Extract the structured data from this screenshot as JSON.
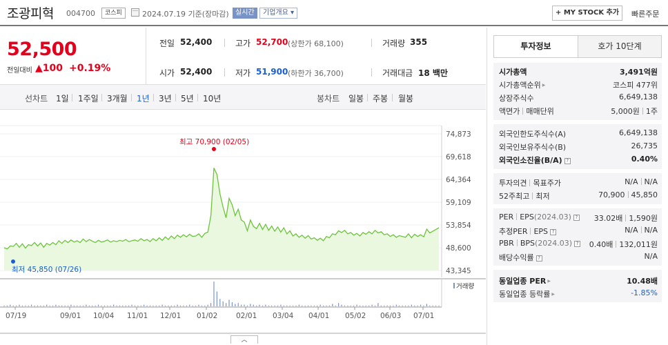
{
  "header": {
    "name": "조광피혁",
    "code": "004700",
    "market": "코스피",
    "date": "2024.07.19 기준(장마감)",
    "realtime": "실시간",
    "company": "기업개요",
    "mystock": "MY STOCK 추가",
    "mystock_plus": "+",
    "quick_order": "빠른주문"
  },
  "price": {
    "current": "52,500",
    "change_label": "전일대비",
    "change": "100",
    "change_pct": "+0.19%",
    "prev_label": "전일",
    "prev": "52,400",
    "open_label": "시가",
    "open": "52,400",
    "high_label": "고가",
    "high": "52,700",
    "high_sub": "(상한가 68,100)",
    "low_label": "저가",
    "low": "51,900",
    "low_sub": "(하한가 36,700)",
    "volume_label": "거래량",
    "volume": "355",
    "amount_label": "거래대금",
    "amount": "18 백만"
  },
  "tabs": {
    "line_label": "선차트",
    "periods": [
      "1일",
      "1주일",
      "3개월",
      "1년",
      "3년",
      "5년",
      "10년"
    ],
    "active": "1년",
    "candle_label": "봉차트",
    "candles": [
      "일봉",
      "주봉",
      "월봉"
    ]
  },
  "chart_data": {
    "type": "area",
    "y_ticks": [
      "74,873",
      "69,618",
      "64,364",
      "59,109",
      "53,854",
      "48,600",
      "43,345"
    ],
    "ylim": [
      43345,
      74873
    ],
    "x_ticks": [
      "07/19",
      "09/01",
      "10/04",
      "11/01",
      "12/01",
      "01/02",
      "02/01",
      "03/04",
      "04/01",
      "05/02",
      "06/03",
      "07/01"
    ],
    "high_annotation": "최고 70,900 (02/05)",
    "low_annotation": "최저 45,850 (07/26)",
    "volume_label": "거래량",
    "series": [
      {
        "values": [
          48600,
          48300,
          49000,
          48900,
          49600,
          48700,
          49500,
          48500,
          49300,
          49100,
          49800,
          49000,
          49700,
          48700,
          49600,
          49200,
          49800,
          49300,
          50200,
          49600,
          50300,
          49800,
          50400,
          49900,
          50200,
          49800,
          50600,
          50000,
          50500,
          50100,
          49800,
          50300,
          49900,
          50100,
          50400,
          49900,
          50200,
          50000,
          50300,
          50100,
          50500,
          50000,
          50200,
          50400,
          50100,
          50700,
          50200,
          50500,
          50000,
          50700,
          50200,
          50900,
          50300,
          51100,
          50500,
          51300,
          50700,
          51500,
          51000,
          51600,
          51100,
          51700,
          51200,
          51300,
          51800,
          51000,
          51900,
          52200,
          56000,
          67000,
          65500,
          61000,
          58000,
          55500,
          60000,
          58500,
          56000,
          57500,
          55000,
          54500,
          52500,
          55000,
          53500,
          53000,
          54200,
          52800,
          54000,
          52600,
          53600,
          52400,
          53400,
          52200,
          53200,
          51800,
          52500,
          51300,
          51800,
          51000,
          51500,
          50800,
          51400,
          50600,
          50900,
          50300,
          50800,
          50200,
          51200,
          50900,
          51800,
          51600,
          52500,
          52100,
          52600,
          51800,
          52100,
          51500,
          51900,
          51300,
          52100,
          51700,
          52300,
          51800,
          52600,
          52000,
          52300,
          51600,
          51800,
          51200,
          51600,
          51000,
          51400,
          51200,
          51000,
          51800,
          50900,
          51700,
          51200,
          51600,
          51100,
          52900,
          52000,
          52400,
          52800,
          53200
        ]
      }
    ],
    "volume": [
      1,
      1,
      2,
      1,
      1,
      2,
      1,
      1,
      1,
      2,
      1,
      1,
      1,
      1,
      2,
      1,
      1,
      2,
      1,
      1,
      1,
      1,
      2,
      1,
      1,
      1,
      1,
      2,
      1,
      1,
      1,
      2,
      1,
      1,
      1,
      1,
      2,
      1,
      1,
      1,
      1,
      1,
      2,
      1,
      1,
      1,
      2,
      1,
      1,
      1,
      1,
      1,
      2,
      1,
      1,
      1,
      1,
      2,
      1,
      1,
      1,
      2,
      1,
      1,
      2,
      1,
      1,
      2,
      4,
      30,
      18,
      9,
      6,
      4,
      8,
      5,
      3,
      4,
      2,
      2,
      1,
      3,
      2,
      1,
      2,
      1,
      2,
      1,
      1,
      1,
      1,
      2,
      1,
      1,
      1,
      1,
      1,
      2,
      1,
      1,
      1,
      1,
      1,
      1,
      2,
      1,
      1,
      1,
      3,
      1,
      4,
      2,
      1,
      1,
      1,
      1,
      2,
      1,
      1,
      1,
      1,
      2,
      1,
      4,
      1,
      1,
      1,
      1,
      1,
      2,
      1,
      1,
      1,
      1,
      2,
      1,
      1,
      2,
      1,
      3,
      1,
      1,
      1,
      1
    ]
  },
  "panel": {
    "tab_invest": "투자정보",
    "tab_orderbook": "호가 10단계",
    "market_cap_label": "시가총액",
    "market_cap": "3,491억원",
    "rank_label": "시가총액순위",
    "rank": "코스피 477위",
    "shares_label": "상장주식수",
    "shares": "6,649,138",
    "face_label": "액면가",
    "unit_label": "매매단위",
    "face": "5,000원",
    "unit": "1주",
    "foreign_limit_label": "외국인한도주식수(A)",
    "foreign_limit": "6,649,138",
    "foreign_hold_label": "외국인보유주식수(B)",
    "foreign_hold": "26,735",
    "foreign_ratio_label": "외국인소진율(B/A)",
    "foreign_ratio": "0.40%",
    "opinion_label": "투자의견",
    "target_label": "목표주가",
    "opinion": "N/A",
    "target": "N/A",
    "w52_label": "52주최고",
    "w52_low_label": "최저",
    "w52_high": "70,900",
    "w52_low": "45,850",
    "per_label": "PER",
    "eps_label": "EPS",
    "year_tag": "(2024.03)",
    "per": "33.02배",
    "eps": "1,590원",
    "est_per_label": "추정PER",
    "est_eps_label": "EPS",
    "est_per": "N/A",
    "est_eps": "N/A",
    "pbr_label": "PBR",
    "bps_label": "BPS",
    "pbr": "0.40배",
    "bps": "132,011원",
    "div_label": "배당수익률",
    "div": "N/A",
    "ind_per_label": "동일업종 PER",
    "ind_per": "10.48배",
    "ind_rate_label": "동일업종 등락률",
    "ind_rate": "-1.85%"
  }
}
